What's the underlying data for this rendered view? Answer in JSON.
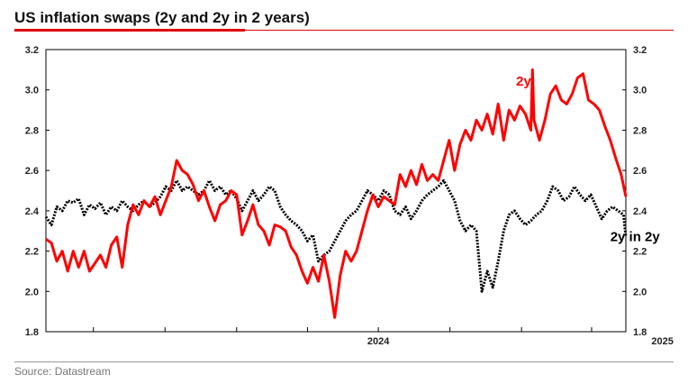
{
  "title": "US inflation swaps (2y and 2y in 2 years)",
  "source": "Source: Datastream",
  "colors": {
    "accent": "#e0000b",
    "series_2y": "#ff0000",
    "series_2y2y": "#000000"
  },
  "chart_data": {
    "type": "line",
    "title": "US inflation swaps (2y and 2y in 2 years)",
    "ylim": [
      1.8,
      3.2
    ],
    "y_ticks": [
      "1.8",
      "2.0",
      "2.2",
      "2.4",
      "2.6",
      "2.8",
      "3.0",
      "3.2"
    ],
    "x_ticks": [
      "2024",
      "2025"
    ],
    "x_range": [
      "2023-05-01",
      "2025-05-15"
    ],
    "grid": false,
    "series": [
      {
        "name": "2y",
        "color": "#ff0000",
        "style": "solid",
        "points": [
          [
            "2023-05-01",
            2.26
          ],
          [
            "2023-05-08",
            2.24
          ],
          [
            "2023-05-15",
            2.15
          ],
          [
            "2023-05-22",
            2.2
          ],
          [
            "2023-05-29",
            2.1
          ],
          [
            "2023-06-05",
            2.2
          ],
          [
            "2023-06-12",
            2.12
          ],
          [
            "2023-06-19",
            2.2
          ],
          [
            "2023-06-26",
            2.1
          ],
          [
            "2023-07-03",
            2.14
          ],
          [
            "2023-07-10",
            2.18
          ],
          [
            "2023-07-17",
            2.12
          ],
          [
            "2023-07-24",
            2.23
          ],
          [
            "2023-07-31",
            2.27
          ],
          [
            "2023-08-07",
            2.12
          ],
          [
            "2023-08-14",
            2.33
          ],
          [
            "2023-08-21",
            2.43
          ],
          [
            "2023-08-28",
            2.38
          ],
          [
            "2023-09-04",
            2.45
          ],
          [
            "2023-09-11",
            2.42
          ],
          [
            "2023-09-18",
            2.47
          ],
          [
            "2023-09-25",
            2.38
          ],
          [
            "2023-10-02",
            2.45
          ],
          [
            "2023-10-09",
            2.52
          ],
          [
            "2023-10-16",
            2.65
          ],
          [
            "2023-10-23",
            2.6
          ],
          [
            "2023-10-30",
            2.58
          ],
          [
            "2023-11-06",
            2.53
          ],
          [
            "2023-11-13",
            2.45
          ],
          [
            "2023-11-20",
            2.5
          ],
          [
            "2023-11-27",
            2.42
          ],
          [
            "2023-12-04",
            2.35
          ],
          [
            "2023-12-11",
            2.43
          ],
          [
            "2023-12-18",
            2.45
          ],
          [
            "2023-12-25",
            2.5
          ],
          [
            "2024-01-01",
            2.48
          ],
          [
            "2024-01-08",
            2.28
          ],
          [
            "2024-01-15",
            2.35
          ],
          [
            "2024-01-22",
            2.43
          ],
          [
            "2024-01-29",
            2.33
          ],
          [
            "2024-02-05",
            2.3
          ],
          [
            "2024-02-12",
            2.23
          ],
          [
            "2024-02-19",
            2.33
          ],
          [
            "2024-02-26",
            2.32
          ],
          [
            "2024-03-04",
            2.3
          ],
          [
            "2024-03-11",
            2.22
          ],
          [
            "2024-03-18",
            2.18
          ],
          [
            "2024-03-25",
            2.1
          ],
          [
            "2024-04-01",
            2.04
          ],
          [
            "2024-04-08",
            2.12
          ],
          [
            "2024-04-15",
            2.05
          ],
          [
            "2024-04-22",
            2.18
          ],
          [
            "2024-04-29",
            2.05
          ],
          [
            "2024-05-06",
            1.87
          ],
          [
            "2024-05-13",
            2.08
          ],
          [
            "2024-05-20",
            2.2
          ],
          [
            "2024-05-27",
            2.15
          ],
          [
            "2024-06-03",
            2.2
          ],
          [
            "2024-06-10",
            2.3
          ],
          [
            "2024-06-17",
            2.4
          ],
          [
            "2024-06-24",
            2.48
          ],
          [
            "2024-07-01",
            2.42
          ],
          [
            "2024-07-08",
            2.47
          ],
          [
            "2024-07-15",
            2.45
          ],
          [
            "2024-07-22",
            2.43
          ],
          [
            "2024-07-29",
            2.58
          ],
          [
            "2024-08-05",
            2.52
          ],
          [
            "2024-08-12",
            2.6
          ],
          [
            "2024-08-19",
            2.53
          ],
          [
            "2024-08-26",
            2.63
          ],
          [
            "2024-09-02",
            2.55
          ],
          [
            "2024-09-09",
            2.58
          ],
          [
            "2024-09-16",
            2.55
          ],
          [
            "2024-09-23",
            2.65
          ],
          [
            "2024-09-30",
            2.75
          ],
          [
            "2024-10-07",
            2.6
          ],
          [
            "2024-10-14",
            2.73
          ],
          [
            "2024-10-21",
            2.8
          ],
          [
            "2024-10-28",
            2.75
          ],
          [
            "2024-11-04",
            2.85
          ],
          [
            "2024-11-11",
            2.8
          ],
          [
            "2024-11-18",
            2.88
          ],
          [
            "2024-11-25",
            2.78
          ],
          [
            "2024-12-02",
            2.93
          ],
          [
            "2024-12-09",
            2.75
          ],
          [
            "2024-12-16",
            2.9
          ],
          [
            "2024-12-23",
            2.85
          ],
          [
            "2024-12-30",
            2.92
          ],
          [
            "2025-01-06",
            2.88
          ],
          [
            "2025-01-13",
            2.8
          ],
          [
            "2025-01-15",
            3.1
          ],
          [
            "2025-01-17",
            2.85
          ],
          [
            "2025-01-24",
            2.75
          ],
          [
            "2025-01-31",
            2.85
          ],
          [
            "2025-02-07",
            2.98
          ],
          [
            "2025-02-14",
            3.02
          ],
          [
            "2025-02-21",
            2.95
          ],
          [
            "2025-02-28",
            2.93
          ],
          [
            "2025-03-07",
            2.98
          ],
          [
            "2025-03-14",
            3.06
          ],
          [
            "2025-03-21",
            3.08
          ],
          [
            "2025-03-28",
            2.95
          ],
          [
            "2025-04-04",
            2.93
          ],
          [
            "2025-04-11",
            2.9
          ],
          [
            "2025-04-18",
            2.82
          ],
          [
            "2025-04-25",
            2.75
          ],
          [
            "2025-05-02",
            2.66
          ],
          [
            "2025-05-09",
            2.58
          ],
          [
            "2025-05-15",
            2.47
          ]
        ]
      },
      {
        "name": "2y in 2y",
        "color": "#000000",
        "style": "dotted",
        "points": [
          [
            "2023-05-01",
            2.37
          ],
          [
            "2023-05-08",
            2.33
          ],
          [
            "2023-05-15",
            2.42
          ],
          [
            "2023-05-22",
            2.4
          ],
          [
            "2023-05-29",
            2.45
          ],
          [
            "2023-06-05",
            2.44
          ],
          [
            "2023-06-12",
            2.46
          ],
          [
            "2023-06-19",
            2.38
          ],
          [
            "2023-06-26",
            2.43
          ],
          [
            "2023-07-03",
            2.41
          ],
          [
            "2023-07-10",
            2.44
          ],
          [
            "2023-07-17",
            2.38
          ],
          [
            "2023-07-24",
            2.42
          ],
          [
            "2023-07-31",
            2.4
          ],
          [
            "2023-08-07",
            2.45
          ],
          [
            "2023-08-14",
            2.42
          ],
          [
            "2023-08-21",
            2.4
          ],
          [
            "2023-08-28",
            2.43
          ],
          [
            "2023-09-04",
            2.45
          ],
          [
            "2023-09-11",
            2.42
          ],
          [
            "2023-09-18",
            2.44
          ],
          [
            "2023-09-25",
            2.47
          ],
          [
            "2023-10-02",
            2.52
          ],
          [
            "2023-10-09",
            2.5
          ],
          [
            "2023-10-16",
            2.55
          ],
          [
            "2023-10-23",
            2.5
          ],
          [
            "2023-10-30",
            2.52
          ],
          [
            "2023-11-06",
            2.5
          ],
          [
            "2023-11-13",
            2.48
          ],
          [
            "2023-11-20",
            2.5
          ],
          [
            "2023-11-27",
            2.55
          ],
          [
            "2023-12-04",
            2.5
          ],
          [
            "2023-12-11",
            2.52
          ],
          [
            "2023-12-18",
            2.48
          ],
          [
            "2023-12-25",
            2.5
          ],
          [
            "2024-01-01",
            2.46
          ],
          [
            "2024-01-08",
            2.4
          ],
          [
            "2024-01-15",
            2.45
          ],
          [
            "2024-01-22",
            2.5
          ],
          [
            "2024-01-29",
            2.45
          ],
          [
            "2024-02-05",
            2.48
          ],
          [
            "2024-02-12",
            2.52
          ],
          [
            "2024-02-19",
            2.5
          ],
          [
            "2024-02-26",
            2.42
          ],
          [
            "2024-03-04",
            2.38
          ],
          [
            "2024-03-11",
            2.35
          ],
          [
            "2024-03-18",
            2.33
          ],
          [
            "2024-03-25",
            2.3
          ],
          [
            "2024-04-01",
            2.25
          ],
          [
            "2024-04-08",
            2.28
          ],
          [
            "2024-04-15",
            2.15
          ],
          [
            "2024-04-22",
            2.18
          ],
          [
            "2024-04-29",
            2.2
          ],
          [
            "2024-05-06",
            2.25
          ],
          [
            "2024-05-13",
            2.3
          ],
          [
            "2024-05-20",
            2.35
          ],
          [
            "2024-05-27",
            2.38
          ],
          [
            "2024-06-03",
            2.4
          ],
          [
            "2024-06-10",
            2.45
          ],
          [
            "2024-06-17",
            2.5
          ],
          [
            "2024-06-24",
            2.48
          ],
          [
            "2024-07-01",
            2.45
          ],
          [
            "2024-07-08",
            2.5
          ],
          [
            "2024-07-15",
            2.48
          ],
          [
            "2024-07-22",
            2.4
          ],
          [
            "2024-07-29",
            2.38
          ],
          [
            "2024-08-05",
            2.42
          ],
          [
            "2024-08-12",
            2.36
          ],
          [
            "2024-08-19",
            2.4
          ],
          [
            "2024-08-26",
            2.45
          ],
          [
            "2024-09-02",
            2.48
          ],
          [
            "2024-09-09",
            2.5
          ],
          [
            "2024-09-16",
            2.52
          ],
          [
            "2024-09-23",
            2.55
          ],
          [
            "2024-09-30",
            2.5
          ],
          [
            "2024-10-07",
            2.45
          ],
          [
            "2024-10-14",
            2.35
          ],
          [
            "2024-10-21",
            2.3
          ],
          [
            "2024-10-28",
            2.33
          ],
          [
            "2024-11-04",
            2.3
          ],
          [
            "2024-11-11",
            2.0
          ],
          [
            "2024-11-18",
            2.1
          ],
          [
            "2024-11-25",
            2.02
          ],
          [
            "2024-12-02",
            2.15
          ],
          [
            "2024-12-09",
            2.3
          ],
          [
            "2024-12-16",
            2.38
          ],
          [
            "2024-12-23",
            2.4
          ],
          [
            "2024-12-30",
            2.36
          ],
          [
            "2025-01-06",
            2.33
          ],
          [
            "2025-01-13",
            2.35
          ],
          [
            "2025-01-20",
            2.38
          ],
          [
            "2025-01-27",
            2.4
          ],
          [
            "2025-02-03",
            2.45
          ],
          [
            "2025-02-10",
            2.52
          ],
          [
            "2025-02-17",
            2.5
          ],
          [
            "2025-02-24",
            2.45
          ],
          [
            "2025-03-03",
            2.47
          ],
          [
            "2025-03-10",
            2.52
          ],
          [
            "2025-03-17",
            2.48
          ],
          [
            "2025-03-24",
            2.45
          ],
          [
            "2025-03-31",
            2.48
          ],
          [
            "2025-04-07",
            2.42
          ],
          [
            "2025-04-14",
            2.36
          ],
          [
            "2025-04-21",
            2.4
          ],
          [
            "2025-04-28",
            2.42
          ],
          [
            "2025-05-05",
            2.4
          ],
          [
            "2025-05-12",
            2.38
          ],
          [
            "2025-05-15",
            2.27
          ]
        ]
      }
    ],
    "annotations": [
      {
        "text": "2y",
        "series": "2y",
        "color": "#ff0000",
        "at": [
          "2024-12-25",
          3.02
        ]
      },
      {
        "text": "2y in 2y",
        "series": "2y in 2y",
        "color": "#000000",
        "at": [
          "2025-04-25",
          2.25
        ]
      }
    ]
  }
}
